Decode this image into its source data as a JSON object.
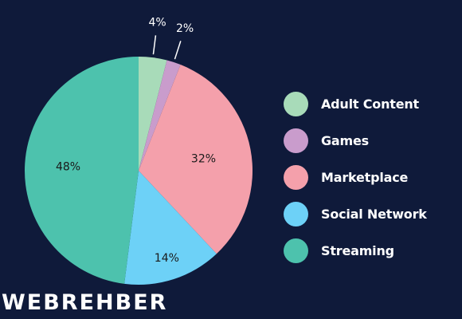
{
  "chart_data": {
    "type": "pie",
    "slices": [
      {
        "label": "Adult Content",
        "value": 4,
        "value_label": "4%",
        "color": "#a8dbb9"
      },
      {
        "label": "Games",
        "value": 2,
        "value_label": "2%",
        "color": "#c99ccc"
      },
      {
        "label": "Marketplace",
        "value": 32,
        "value_label": "32%",
        "color": "#f4a0ab"
      },
      {
        "label": "Social Network",
        "value": 14,
        "value_label": "14%",
        "color": "#6dd1f7"
      },
      {
        "label": "Streaming",
        "value": 48,
        "value_label": "48%",
        "color": "#4dc2ad"
      }
    ],
    "legend_position": "right"
  },
  "brand": {
    "logo_text": "WEBREHBER",
    "background": "#0f1a3a",
    "accent": "#d8312f"
  }
}
